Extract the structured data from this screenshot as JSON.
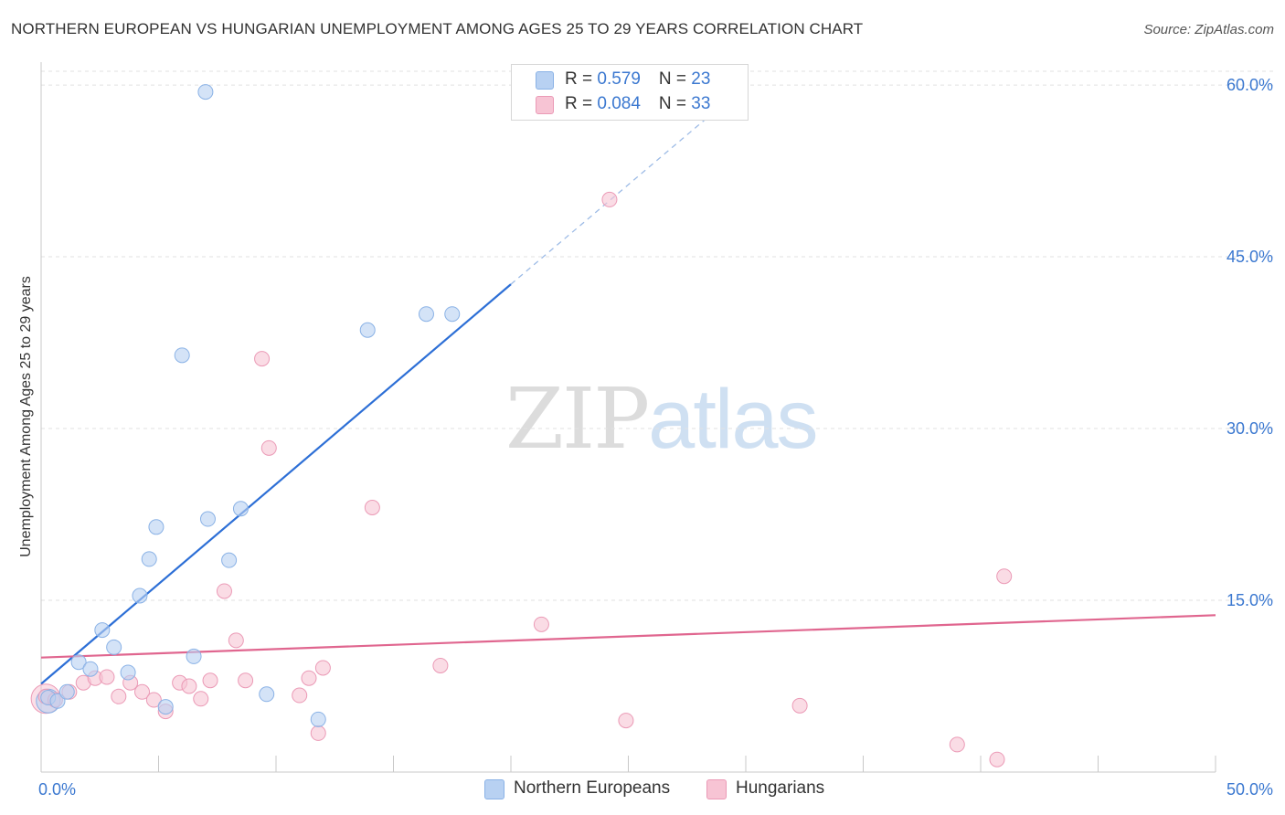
{
  "title": "NORTHERN EUROPEAN VS HUNGARIAN UNEMPLOYMENT AMONG AGES 25 TO 29 YEARS CORRELATION CHART",
  "source": "Source: ZipAtlas.com",
  "watermark": {
    "zip": "ZIP",
    "atlas": "atlas"
  },
  "colors": {
    "blue_fill": "#b8d1f2",
    "blue_stroke": "#8ab2e6",
    "blue_line": "#2d6fd6",
    "pink_fill": "#f7c4d4",
    "pink_stroke": "#eb9ab6",
    "pink_line": "#e0668f",
    "tick_label": "#3b78d0",
    "grid": "#e2e2e2"
  },
  "legend_top": {
    "rows": [
      {
        "r_label": "R = ",
        "r_value": "0.579",
        "n_label": "N = ",
        "n_value": "23"
      },
      {
        "r_label": "R = ",
        "r_value": "0.084",
        "n_label": "N = ",
        "n_value": "33"
      }
    ]
  },
  "chart_data": {
    "type": "scatter",
    "title": "NORTHERN EUROPEAN VS HUNGARIAN UNEMPLOYMENT AMONG AGES 25 TO 29 YEARS CORRELATION CHART",
    "xlabel": "",
    "ylabel": "Unemployment Among Ages 25 to 29 years",
    "xlim": [
      0,
      50
    ],
    "ylim": [
      0,
      62
    ],
    "x_tick_labels": [
      "0.0%",
      "50.0%"
    ],
    "y_ticks": [
      15,
      30,
      45,
      60
    ],
    "y_tick_labels": [
      "15.0%",
      "30.0%",
      "45.0%",
      "60.0%"
    ],
    "grid": true,
    "legend_placement": "bottom-center",
    "series": [
      {
        "name": "Northern Europeans",
        "r": 0.579,
        "n": 23,
        "points": [
          [
            0.3,
            6.5
          ],
          [
            0.7,
            6.2
          ],
          [
            1.1,
            7.0
          ],
          [
            1.6,
            9.6
          ],
          [
            2.1,
            9.0
          ],
          [
            2.6,
            12.4
          ],
          [
            3.1,
            10.9
          ],
          [
            3.7,
            8.7
          ],
          [
            4.2,
            15.4
          ],
          [
            4.6,
            18.6
          ],
          [
            4.9,
            21.4
          ],
          [
            5.3,
            5.7
          ],
          [
            6.0,
            36.4
          ],
          [
            6.5,
            10.1
          ],
          [
            7.0,
            59.4
          ],
          [
            7.1,
            22.1
          ],
          [
            8.0,
            18.5
          ],
          [
            8.5,
            23.0
          ],
          [
            9.6,
            6.8
          ],
          [
            11.8,
            4.6
          ],
          [
            13.9,
            38.6
          ],
          [
            16.4,
            40.0
          ],
          [
            17.5,
            40.0
          ]
        ],
        "trend": {
          "x0": 0,
          "y0": 7.7,
          "x1": 20,
          "y1": 42.6,
          "dash_to_x": 30,
          "dash_to_y": 60.0
        }
      },
      {
        "name": "Hungarians",
        "r": 0.084,
        "n": 33,
        "points": [
          [
            0.2,
            6.6
          ],
          [
            0.6,
            6.3
          ],
          [
            1.2,
            7.0
          ],
          [
            1.8,
            7.8
          ],
          [
            2.3,
            8.2
          ],
          [
            2.8,
            8.3
          ],
          [
            3.3,
            6.6
          ],
          [
            3.8,
            7.8
          ],
          [
            4.3,
            7.0
          ],
          [
            4.8,
            6.3
          ],
          [
            5.3,
            5.3
          ],
          [
            5.9,
            7.8
          ],
          [
            6.3,
            7.5
          ],
          [
            6.8,
            6.4
          ],
          [
            7.2,
            8.0
          ],
          [
            7.8,
            15.8
          ],
          [
            8.3,
            11.5
          ],
          [
            8.7,
            8.0
          ],
          [
            9.4,
            36.1
          ],
          [
            9.7,
            28.3
          ],
          [
            11.0,
            6.7
          ],
          [
            11.4,
            8.2
          ],
          [
            11.8,
            3.4
          ],
          [
            12.0,
            9.1
          ],
          [
            14.1,
            23.1
          ],
          [
            17.0,
            9.3
          ],
          [
            21.3,
            12.9
          ],
          [
            24.2,
            50.0
          ],
          [
            24.9,
            4.5
          ],
          [
            32.3,
            5.8
          ],
          [
            39.0,
            2.4
          ],
          [
            40.7,
            1.1
          ],
          [
            41.0,
            17.1
          ]
        ],
        "trend": {
          "x0": 0,
          "y0": 10.0,
          "x1": 50,
          "y1": 13.7
        }
      }
    ]
  }
}
